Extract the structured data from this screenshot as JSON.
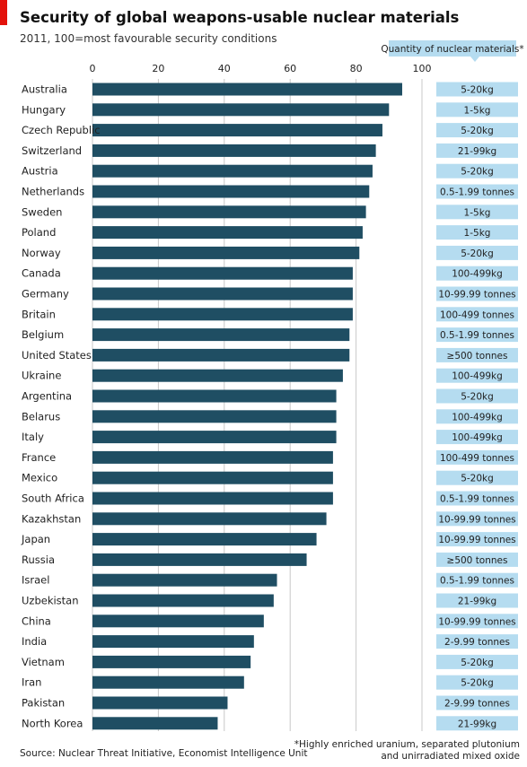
{
  "header": {
    "title": "Security of global weapons-usable nuclear materials",
    "subtitle": "2011, 100=most favourable security conditions"
  },
  "quantity_header": "Quantity of nuclear materials*",
  "footer": {
    "source": "Source: Nuclear Threat Initiative, Economist Intelligence Unit",
    "footnote_line1": "*Highly enriched uranium, separated plutonium",
    "footnote_line2": "and unirradiated mixed oxide"
  },
  "colors": {
    "bar": "#1f4e63",
    "quantity_fill": "#b5dcf0",
    "quantity_header_fill": "#b5dcf0",
    "grid": "#c8c8c8",
    "accent": "#e3120b"
  },
  "chart_data": {
    "type": "bar",
    "orientation": "horizontal",
    "title": "Security of global weapons-usable nuclear materials",
    "subtitle": "2011, 100=most favourable security conditions",
    "xlim": [
      0,
      100
    ],
    "ticks": [
      0,
      20,
      40,
      60,
      80,
      100
    ],
    "tick_labels": [
      "0",
      "20",
      "40",
      "60",
      "80",
      "100"
    ],
    "grid": true,
    "categories": [
      "Australia",
      "Hungary",
      "Czech Republic",
      "Switzerland",
      "Austria",
      "Netherlands",
      "Sweden",
      "Poland",
      "Norway",
      "Canada",
      "Germany",
      "Britain",
      "Belgium",
      "United States",
      "Ukraine",
      "Argentina",
      "Belarus",
      "Italy",
      "France",
      "Mexico",
      "South Africa",
      "Kazakhstan",
      "Japan",
      "Russia",
      "Israel",
      "Uzbekistan",
      "China",
      "India",
      "Vietnam",
      "Iran",
      "Pakistan",
      "North Korea"
    ],
    "values": [
      94,
      90,
      88,
      86,
      85,
      84,
      83,
      82,
      81,
      79,
      79,
      79,
      78,
      78,
      76,
      74,
      74,
      74,
      73,
      73,
      73,
      71,
      68,
      65,
      56,
      55,
      52,
      49,
      48,
      46,
      41,
      38
    ],
    "quantities": [
      "5-20kg",
      "1-5kg",
      "5-20kg",
      "21-99kg",
      "5-20kg",
      "0.5-1.99 tonnes",
      "1-5kg",
      "1-5kg",
      "5-20kg",
      "100-499kg",
      "10-99.99 tonnes",
      "100-499 tonnes",
      "0.5-1.99 tonnes",
      "≥500 tonnes",
      "100-499kg",
      "5-20kg",
      "100-499kg",
      "100-499kg",
      "100-499 tonnes",
      "5-20kg",
      "0.5-1.99 tonnes",
      "10-99.99 tonnes",
      "10-99.99 tonnes",
      "≥500 tonnes",
      "0.5-1.99 tonnes",
      "21-99kg",
      "10-99.99 tonnes",
      "2-9.99 tonnes",
      "5-20kg",
      "5-20kg",
      "2-9.99 tonnes",
      "21-99kg"
    ]
  }
}
